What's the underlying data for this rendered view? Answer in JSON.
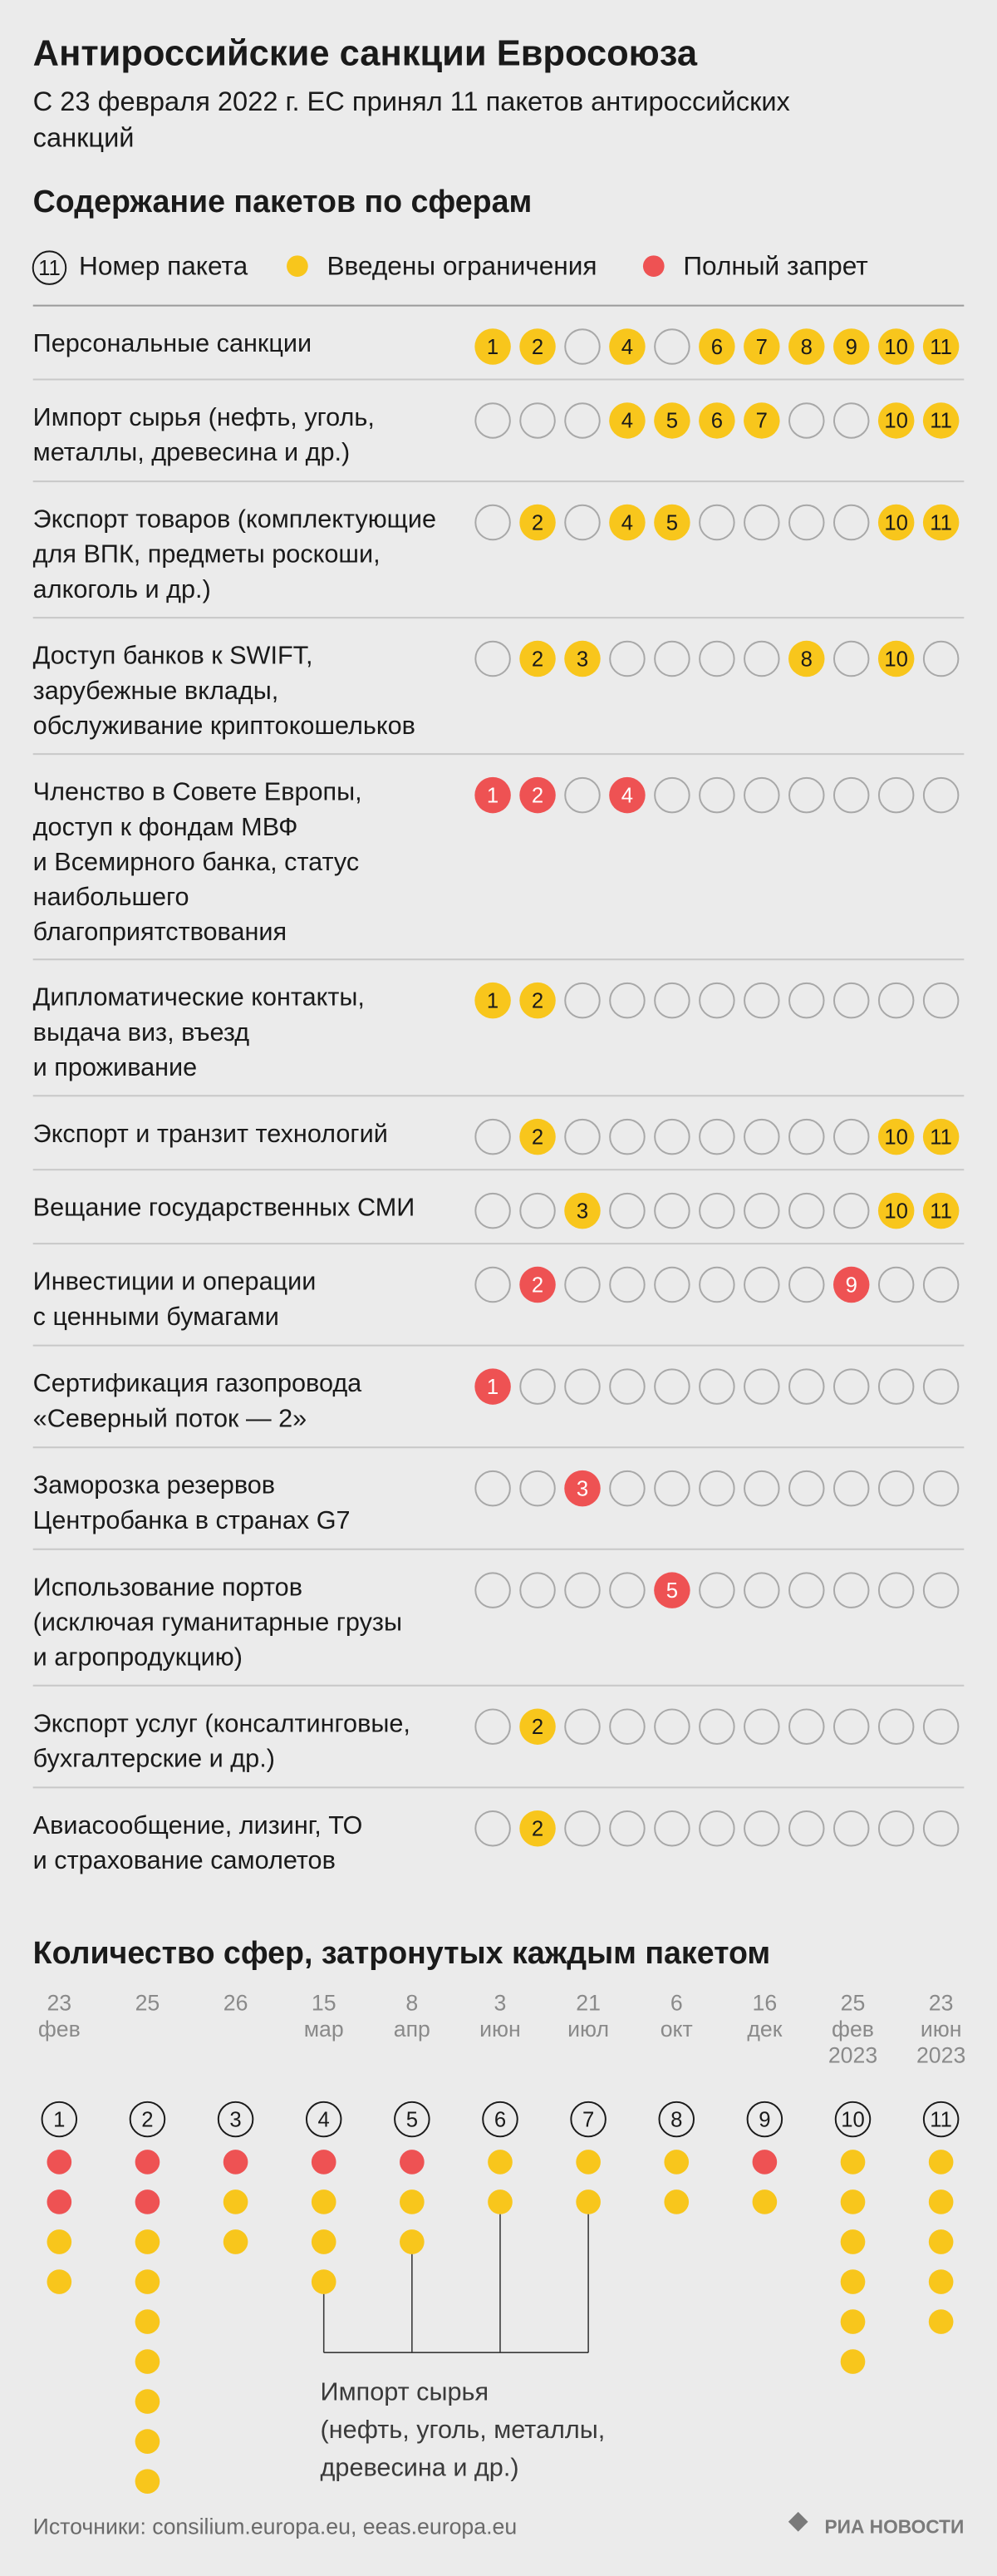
{
  "header": {
    "title": "Антироссийские санкции Евросоюза",
    "subtitle": [
      "С 23 февраля 2022 г. ЕС принял 11 пакетов антироссийских",
      "санкций"
    ]
  },
  "matrix": {
    "title": "Содержание пакетов по сферам",
    "legend": {
      "package_number": {
        "sample": "11",
        "label": "Номер пакета"
      },
      "restriction": {
        "label": "Введены ограничения",
        "color": "#f8c61c"
      },
      "ban": {
        "label": "Полный запрет",
        "color": "#ee5253"
      }
    },
    "rows": [
      {
        "label": [
          "Персональные санкции"
        ],
        "cells": [
          {
            "label": "1",
            "status": "restriction"
          },
          {
            "label": "2",
            "status": "restriction"
          },
          null,
          {
            "label": "4",
            "status": "restriction"
          },
          null,
          {
            "label": "6",
            "status": "restriction"
          },
          {
            "label": "7",
            "status": "restriction"
          },
          {
            "label": "8",
            "status": "restriction"
          },
          {
            "label": "9",
            "status": "restriction"
          },
          {
            "label": "10",
            "status": "restriction"
          },
          {
            "label": "11",
            "status": "restriction"
          }
        ]
      },
      {
        "label": [
          "Импорт сырья (нефть, уголь,",
          "металлы, древесина и др.)"
        ],
        "cells": [
          null,
          null,
          null,
          {
            "label": "4",
            "status": "restriction"
          },
          {
            "label": "5",
            "status": "restriction"
          },
          {
            "label": "6",
            "status": "restriction"
          },
          {
            "label": "7",
            "status": "restriction"
          },
          null,
          null,
          {
            "label": "10",
            "status": "restriction"
          },
          {
            "label": "11",
            "status": "restriction"
          }
        ]
      },
      {
        "label": [
          "Экспорт товаров (комплектующие",
          "для ВПК, предметы роскоши,",
          "алкоголь и др.)"
        ],
        "cells": [
          null,
          {
            "label": "2",
            "status": "restriction"
          },
          null,
          {
            "label": "4",
            "status": "restriction"
          },
          {
            "label": "5",
            "status": "restriction"
          },
          null,
          null,
          null,
          null,
          {
            "label": "10",
            "status": "restriction"
          },
          {
            "label": "11",
            "status": "restriction"
          }
        ]
      },
      {
        "label": [
          "Доступ банков к SWIFT,",
          "зарубежные вклады,",
          "обслуживание криптокошельков"
        ],
        "cells": [
          null,
          {
            "label": "2",
            "status": "restriction"
          },
          {
            "label": "3",
            "status": "restriction"
          },
          null,
          null,
          null,
          null,
          {
            "label": "8",
            "status": "restriction"
          },
          null,
          {
            "label": "10",
            "status": "restriction"
          },
          null
        ]
      },
      {
        "label": [
          "Членство в Совете Европы,",
          "доступ к фондам МВФ",
          "и Всемирного банка, статус",
          "наибольшего",
          "благоприятствования"
        ],
        "cells": [
          {
            "label": "1",
            "status": "ban"
          },
          {
            "label": "2",
            "status": "ban"
          },
          null,
          {
            "label": "4",
            "status": "ban"
          },
          null,
          null,
          null,
          null,
          null,
          null,
          null
        ]
      },
      {
        "label": [
          "Дипломатические контакты,",
          "выдача виз, въезд",
          "и проживание"
        ],
        "cells": [
          {
            "label": "1",
            "status": "restriction"
          },
          {
            "label": "2",
            "status": "restriction"
          },
          null,
          null,
          null,
          null,
          null,
          null,
          null,
          null,
          null
        ]
      },
      {
        "label": [
          "Экспорт и транзит технологий"
        ],
        "cells": [
          null,
          {
            "label": "2",
            "status": "restriction"
          },
          null,
          null,
          null,
          null,
          null,
          null,
          null,
          {
            "label": "10",
            "status": "restriction"
          },
          {
            "label": "11",
            "status": "restriction"
          }
        ]
      },
      {
        "label": [
          "Вещание государственных СМИ"
        ],
        "cells": [
          null,
          null,
          {
            "label": "3",
            "status": "restriction"
          },
          null,
          null,
          null,
          null,
          null,
          null,
          {
            "label": "10",
            "status": "restriction"
          },
          {
            "label": "11",
            "status": "restriction"
          }
        ]
      },
      {
        "label": [
          "Инвестиции и операции",
          "с ценными бумагами"
        ],
        "cells": [
          null,
          {
            "label": "2",
            "status": "ban"
          },
          null,
          null,
          null,
          null,
          null,
          null,
          {
            "label": "9",
            "status": "ban"
          },
          null,
          null
        ]
      },
      {
        "label": [
          "Сертификация газопровода",
          "«Северный поток — 2»"
        ],
        "cells": [
          {
            "label": "1",
            "status": "ban"
          },
          null,
          null,
          null,
          null,
          null,
          null,
          null,
          null,
          null,
          null
        ]
      },
      {
        "label": [
          "Заморозка резервов",
          "Центробанка в странах G7"
        ],
        "cells": [
          null,
          null,
          {
            "label": "3",
            "status": "ban"
          },
          null,
          null,
          null,
          null,
          null,
          null,
          null,
          null
        ]
      },
      {
        "label": [
          "Использование портов",
          "(исключая гуманитарные грузы",
          "и агропродукцию)"
        ],
        "cells": [
          null,
          null,
          null,
          null,
          {
            "label": "5",
            "status": "ban"
          },
          null,
          null,
          null,
          null,
          null,
          null
        ]
      },
      {
        "label": [
          "Экспорт услуг (консалтинговые,",
          "бухгалтерские и др.)"
        ],
        "cells": [
          null,
          {
            "label": "2",
            "status": "restriction"
          },
          null,
          null,
          null,
          null,
          null,
          null,
          null,
          null,
          null
        ]
      },
      {
        "label": [
          "Авиасообщение, лизинг, ТО",
          "и страхование самолетов"
        ],
        "cells": [
          null,
          {
            "label": "2",
            "status": "restriction"
          },
          null,
          null,
          null,
          null,
          null,
          null,
          null,
          null,
          null
        ]
      }
    ]
  },
  "packages_chart": {
    "title": "Количество сфер, затронутых каждым пакетом",
    "packages": [
      {
        "label": "1",
        "date": [
          "23",
          "фев"
        ],
        "bans": 2,
        "restrictions": 2
      },
      {
        "label": "2",
        "date": [
          "25"
        ],
        "bans": 2,
        "restrictions": 7
      },
      {
        "label": "3",
        "date": [
          "26"
        ],
        "bans": 1,
        "restrictions": 2
      },
      {
        "label": "4",
        "date": [
          "15",
          "мар"
        ],
        "bans": 1,
        "restrictions": 3
      },
      {
        "label": "5",
        "date": [
          "8",
          "апр"
        ],
        "bans": 1,
        "restrictions": 2
      },
      {
        "label": "6",
        "date": [
          "3",
          "июн"
        ],
        "bans": 0,
        "restrictions": 2
      },
      {
        "label": "7",
        "date": [
          "21",
          "июл"
        ],
        "bans": 0,
        "restrictions": 2
      },
      {
        "label": "8",
        "date": [
          "6",
          "окт"
        ],
        "bans": 0,
        "restrictions": 2
      },
      {
        "label": "9",
        "date": [
          "16",
          "дек"
        ],
        "bans": 1,
        "restrictions": 1
      },
      {
        "label": "10",
        "date": [
          "25",
          "фев",
          "2023"
        ],
        "bans": 0,
        "restrictions": 6
      },
      {
        "label": "11",
        "date": [
          "23",
          "июн",
          "2023"
        ],
        "bans": 0,
        "restrictions": 5
      }
    ],
    "annotation": [
      "Импорт сырья",
      "(нефть, уголь, металлы,",
      "древесина и др.)"
    ]
  },
  "footer": {
    "sources": "Источники: consilium.europa.eu, eeas.europa.eu",
    "logo": "РИА НОВОСТИ"
  }
}
